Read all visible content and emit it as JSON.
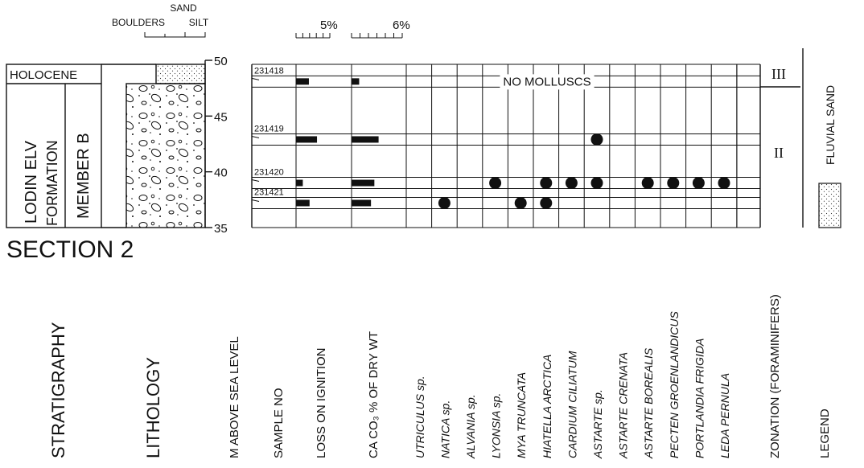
{
  "grain_size": {
    "sand": "SAND",
    "boulders": "BOULDERS",
    "silt": "SILT"
  },
  "elevation": {
    "range": [
      35,
      50
    ],
    "ticks": [
      50,
      45,
      40,
      35
    ]
  },
  "stratigraphy": {
    "holocene": "HOLOCENE",
    "formation_line1": "LODIN ELV",
    "formation_line2": "FORMATION",
    "member": "MEMBER B"
  },
  "section_title": "SECTION 2",
  "scales": {
    "loss_on_ignition": {
      "value": 5,
      "label": "5%"
    },
    "caco3": {
      "value": 6,
      "label": "6%"
    }
  },
  "samples": [
    {
      "number": "231418",
      "elevation": 48.1,
      "loss_on_ignition": 1.9,
      "caco3": 0.9
    },
    {
      "number": "231419",
      "elevation": 42.9,
      "loss_on_ignition": 3.1,
      "caco3": 3.2
    },
    {
      "number": "231420",
      "elevation": 39.0,
      "loss_on_ignition": 1.0,
      "caco3": 2.7
    },
    {
      "number": "231421",
      "elevation": 37.2,
      "loss_on_ignition": 2.0,
      "caco3": 2.3
    }
  ],
  "no_molluscs": "NO MOLLUSCS",
  "occurrences": [
    [
      0,
      0,
      0,
      0,
      0,
      0,
      0,
      0,
      0,
      0,
      0,
      0,
      0
    ],
    [
      0,
      0,
      0,
      0,
      0,
      0,
      0,
      1,
      0,
      0,
      0,
      0,
      0
    ],
    [
      0,
      0,
      0,
      1,
      0,
      1,
      1,
      1,
      0,
      1,
      1,
      1,
      1
    ],
    [
      0,
      1,
      0,
      0,
      1,
      1,
      0,
      0,
      0,
      0,
      0,
      0,
      0
    ]
  ],
  "zones": [
    "III",
    "II"
  ],
  "legend": {
    "label": "FLUVIAL SAND"
  },
  "columns": {
    "stratigraphy": "STRATIGRAPHY",
    "lithology": "LITHOLOGY",
    "elevation": "M ABOVE SEA LEVEL",
    "sample": "SAMPLE NO",
    "loss_on_ignition": "LOSS ON IGNITION",
    "caco3": "CA CO₃ % OF DRY WT",
    "species": [
      "UTRICULUS sp.",
      "NATICA sp.",
      "ALVANIA sp.",
      "LYONSIA sp.",
      "MYA TRUNCATA",
      "HIATELLA ARCTICA",
      "CARDIUM CILIATUM",
      "ASTARTE sp.",
      "ASTARTE CRENATA",
      "ASTARTE BOREALIS",
      "PECTEN GROENLANDICUS",
      "PORTLANDIA FRIGIDA",
      "LEDA PERNULA"
    ],
    "zonation": "ZONATION (FORAMINIFERS)",
    "legend": "LEGEND"
  }
}
